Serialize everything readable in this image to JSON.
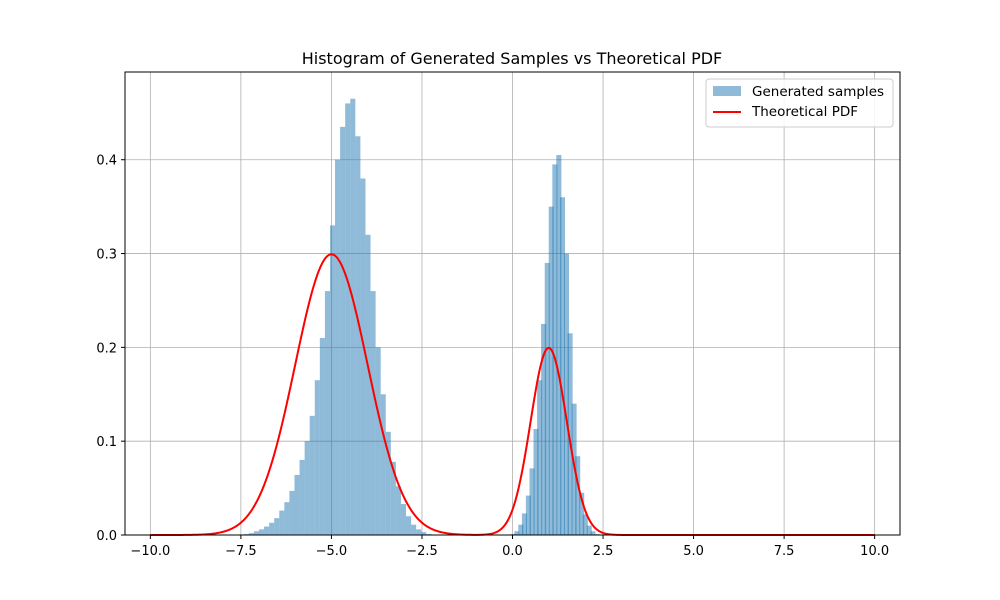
{
  "chart_data": {
    "type": "bar",
    "title": "Histogram of Generated Samples vs Theoretical PDF",
    "xlabel": "",
    "ylabel": "",
    "xlim": [
      -10.7,
      10.7
    ],
    "ylim": [
      0,
      0.4935
    ],
    "grid": true,
    "legend_position": "top-right",
    "x_ticks": [
      -10.0,
      -7.5,
      -5.0,
      -2.5,
      0.0,
      2.5,
      5.0,
      7.5,
      10.0
    ],
    "x_tick_labels": [
      "−10.0",
      "−7.5",
      "−5.0",
      "−2.5",
      "0.0",
      "2.5",
      "5.0",
      "7.5",
      "10.0"
    ],
    "y_ticks": [
      0.0,
      0.1,
      0.2,
      0.3,
      0.4
    ],
    "y_tick_labels": [
      "0.0",
      "0.1",
      "0.2",
      "0.3",
      "0.4"
    ],
    "histogram": {
      "name": "Generated samples",
      "color": "#1f77b4",
      "alpha": 0.5,
      "bin_width": 0.14,
      "bins": [
        [
          -7.42,
          0.001
        ],
        [
          -7.28,
          0.002
        ],
        [
          -7.14,
          0.004
        ],
        [
          -7.0,
          0.006
        ],
        [
          -6.86,
          0.009
        ],
        [
          -6.72,
          0.013
        ],
        [
          -6.58,
          0.018
        ],
        [
          -6.44,
          0.026
        ],
        [
          -6.3,
          0.035
        ],
        [
          -6.16,
          0.047
        ],
        [
          -6.02,
          0.064
        ],
        [
          -5.88,
          0.08
        ],
        [
          -5.74,
          0.1
        ],
        [
          -5.6,
          0.127
        ],
        [
          -5.46,
          0.165
        ],
        [
          -5.32,
          0.21
        ],
        [
          -5.18,
          0.26
        ],
        [
          -5.04,
          0.33
        ],
        [
          -4.9,
          0.4
        ],
        [
          -4.76,
          0.435
        ],
        [
          -4.62,
          0.46
        ],
        [
          -4.48,
          0.465
        ],
        [
          -4.34,
          0.425
        ],
        [
          -4.2,
          0.38
        ],
        [
          -4.06,
          0.32
        ],
        [
          -3.92,
          0.26
        ],
        [
          -3.78,
          0.2
        ],
        [
          -3.64,
          0.15
        ],
        [
          -3.5,
          0.11
        ],
        [
          -3.36,
          0.078
        ],
        [
          -3.22,
          0.052
        ],
        [
          -3.08,
          0.033
        ],
        [
          -2.94,
          0.02
        ],
        [
          -2.8,
          0.011
        ],
        [
          -2.66,
          0.006
        ],
        [
          -2.52,
          0.003
        ],
        [
          -2.38,
          0.001
        ],
        [
          -0.05,
          0.001
        ],
        [
          0.05,
          0.004
        ],
        [
          0.16,
          0.011
        ],
        [
          0.26,
          0.023
        ],
        [
          0.37,
          0.042
        ],
        [
          0.47,
          0.071
        ],
        [
          0.58,
          0.113
        ],
        [
          0.68,
          0.165
        ],
        [
          0.79,
          0.225
        ],
        [
          0.89,
          0.29
        ],
        [
          1.0,
          0.35
        ],
        [
          1.1,
          0.395
        ],
        [
          1.21,
          0.405
        ],
        [
          1.31,
          0.36
        ],
        [
          1.42,
          0.3
        ],
        [
          1.52,
          0.215
        ],
        [
          1.63,
          0.14
        ],
        [
          1.73,
          0.084
        ],
        [
          1.84,
          0.045
        ],
        [
          1.94,
          0.022
        ],
        [
          2.05,
          0.01
        ],
        [
          2.15,
          0.004
        ],
        [
          2.26,
          0.001
        ]
      ]
    },
    "pdf": {
      "name": "Theoretical PDF",
      "color": "#ff0000",
      "components": [
        {
          "weight": 0.75,
          "mean": -5.0,
          "std": 1.0
        },
        {
          "weight": 0.25,
          "mean": 1.0,
          "std": 0.5
        }
      ],
      "x_range": [
        -10.0,
        10.0
      ]
    }
  }
}
